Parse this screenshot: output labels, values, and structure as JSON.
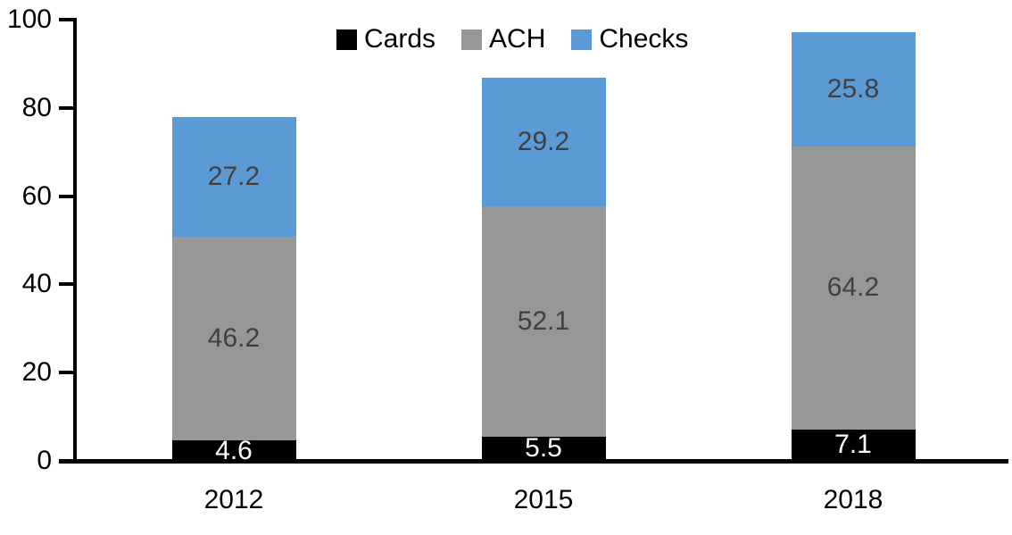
{
  "chart_data": {
    "type": "bar",
    "stacked": true,
    "title": "",
    "xlabel": "",
    "ylabel": "",
    "categories": [
      "2012",
      "2015",
      "2018"
    ],
    "series": [
      {
        "name": "Cards",
        "color": "#000000",
        "label_color": "#ffffff",
        "values": [
          4.6,
          5.5,
          7.1
        ]
      },
      {
        "name": "ACH",
        "color": "#979797",
        "label_color": "#3f3f3f",
        "values": [
          46.2,
          52.1,
          64.2
        ]
      },
      {
        "name": "Checks",
        "color": "#5b9bd5",
        "label_color": "#3f3f3f",
        "values": [
          27.2,
          29.2,
          25.8
        ]
      }
    ],
    "totals": [
      78.0,
      86.8,
      97.1
    ],
    "y_ticks": [
      0,
      20,
      40,
      60,
      80,
      100
    ],
    "ylim": [
      0,
      100
    ],
    "grid": false,
    "value_labels_shown": true,
    "legend_position": "top",
    "legend_labels": [
      "Cards",
      "ACH",
      "Checks"
    ],
    "axis_color": "#000000",
    "background_color": "#ffffff"
  }
}
